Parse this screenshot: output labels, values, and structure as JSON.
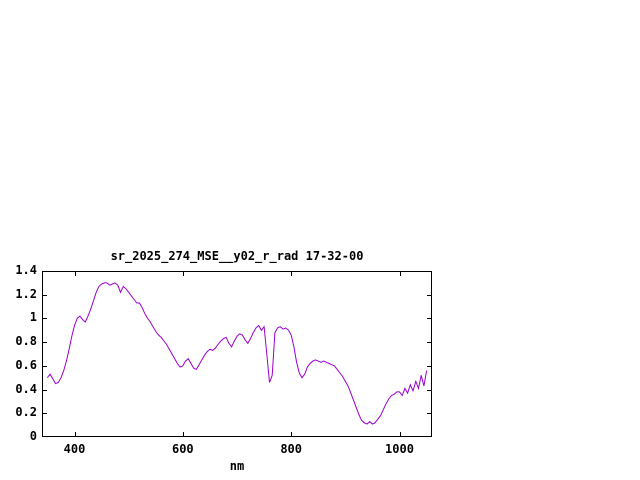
{
  "page": {
    "background": "#ffffff",
    "border_color": "#000000",
    "text_color": "#000000"
  },
  "chart_data": {
    "type": "line",
    "title": "sr_2025_274_MSE__y02_r_rad 17-32-00",
    "xlabel": "nm",
    "ylabel": "",
    "xlim": [
      340,
      1060
    ],
    "ylim": [
      0,
      1.4
    ],
    "xticks": [
      400,
      600,
      800,
      1000
    ],
    "yticks": [
      0,
      0.2,
      0.4,
      0.6,
      0.8,
      1,
      1.2,
      1.4
    ],
    "ytick_labels": [
      "0",
      "0.2",
      "0.4",
      "0.6",
      "0.8",
      "1",
      "1.2",
      "1.4"
    ],
    "grid": false,
    "legend": "none",
    "line_color": "#9900cc",
    "x": [
      350,
      355,
      360,
      365,
      370,
      375,
      380,
      385,
      390,
      395,
      400,
      405,
      410,
      415,
      420,
      425,
      430,
      435,
      440,
      445,
      450,
      455,
      460,
      465,
      470,
      475,
      480,
      485,
      490,
      495,
      500,
      505,
      510,
      515,
      520,
      525,
      530,
      535,
      540,
      545,
      550,
      555,
      560,
      565,
      570,
      575,
      580,
      585,
      590,
      595,
      600,
      605,
      610,
      615,
      620,
      625,
      630,
      635,
      640,
      645,
      650,
      655,
      660,
      665,
      670,
      675,
      680,
      685,
      690,
      695,
      700,
      705,
      710,
      715,
      720,
      725,
      730,
      735,
      740,
      745,
      750,
      755,
      760,
      765,
      770,
      775,
      780,
      785,
      790,
      795,
      800,
      805,
      810,
      815,
      820,
      825,
      830,
      835,
      840,
      845,
      850,
      855,
      860,
      865,
      870,
      875,
      880,
      885,
      890,
      895,
      900,
      905,
      910,
      915,
      920,
      925,
      930,
      935,
      940,
      945,
      950,
      955,
      960,
      965,
      970,
      975,
      980,
      985,
      990,
      995,
      1000,
      1005,
      1010,
      1015,
      1020,
      1025,
      1030,
      1035,
      1040,
      1045,
      1050
    ],
    "y": [
      0.5,
      0.53,
      0.49,
      0.45,
      0.46,
      0.5,
      0.56,
      0.64,
      0.74,
      0.85,
      0.94,
      1.0,
      1.02,
      0.99,
      0.97,
      1.02,
      1.08,
      1.15,
      1.22,
      1.27,
      1.29,
      1.3,
      1.3,
      1.28,
      1.29,
      1.3,
      1.28,
      1.22,
      1.27,
      1.25,
      1.22,
      1.19,
      1.16,
      1.13,
      1.13,
      1.09,
      1.04,
      1.0,
      0.97,
      0.93,
      0.89,
      0.86,
      0.84,
      0.81,
      0.78,
      0.74,
      0.7,
      0.66,
      0.62,
      0.59,
      0.6,
      0.64,
      0.66,
      0.62,
      0.58,
      0.57,
      0.61,
      0.65,
      0.69,
      0.72,
      0.74,
      0.73,
      0.75,
      0.78,
      0.81,
      0.83,
      0.84,
      0.79,
      0.76,
      0.81,
      0.85,
      0.87,
      0.86,
      0.82,
      0.79,
      0.83,
      0.88,
      0.92,
      0.94,
      0.9,
      0.93,
      0.7,
      0.46,
      0.52,
      0.88,
      0.92,
      0.93,
      0.91,
      0.92,
      0.9,
      0.86,
      0.76,
      0.63,
      0.54,
      0.5,
      0.53,
      0.59,
      0.62,
      0.64,
      0.65,
      0.64,
      0.63,
      0.64,
      0.63,
      0.62,
      0.61,
      0.6,
      0.57,
      0.54,
      0.51,
      0.47,
      0.43,
      0.37,
      0.31,
      0.25,
      0.19,
      0.14,
      0.12,
      0.11,
      0.13,
      0.11,
      0.12,
      0.15,
      0.18,
      0.23,
      0.28,
      0.32,
      0.35,
      0.36,
      0.38,
      0.38,
      0.35,
      0.41,
      0.37,
      0.44,
      0.39,
      0.47,
      0.41,
      0.52,
      0.43,
      0.56
    ]
  }
}
